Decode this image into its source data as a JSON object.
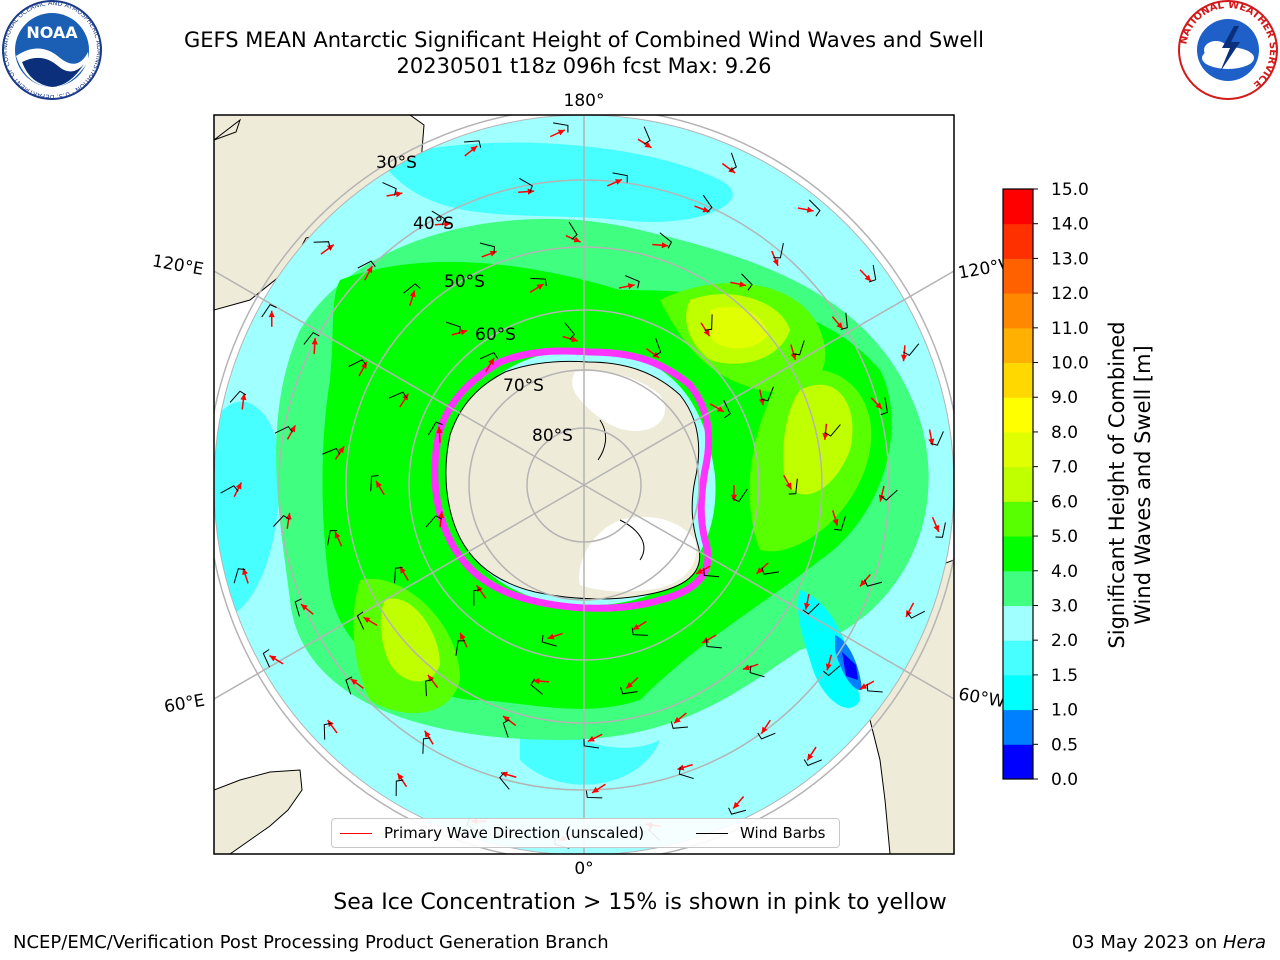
{
  "title": {
    "line1": "GEFS MEAN Antarctic Significant Height of Combined Wind Waves and Swell",
    "line2": "20230501 t18z 096h fcst   Max: 9.26"
  },
  "map": {
    "projection": "south-polar-stereographic",
    "meridian_labels": {
      "top": "180°",
      "bottom": "0°",
      "left_upper": "120°E",
      "left_lower": "60°E",
      "right_upper": "120°W",
      "right_lower": "60°W"
    },
    "latitude_labels": [
      "30°S",
      "40°S",
      "50°S",
      "60°S",
      "70°S",
      "80°S"
    ],
    "colors": {
      "land": "#efebd9",
      "ice_shelf": "#ffffff",
      "sea_ice_edge": "#ff33ff",
      "grid": "#b4b4b4",
      "wave_arrow": "#ff0000",
      "wind_barb": "#000000"
    }
  },
  "legend": {
    "wave_label": "Primary Wave Direction (unscaled)",
    "barb_label": "Wind Barbs",
    "wave_color": "#ff0000",
    "barb_color": "#000000"
  },
  "colorbar": {
    "label_line1": "Significant Height of Combined",
    "label_line2": "Wind Waves and Swell [m]",
    "ticks": [
      "0.0",
      "0.5",
      "1.0",
      "1.5",
      "2.0",
      "3.0",
      "4.0",
      "5.0",
      "6.0",
      "7.0",
      "8.0",
      "9.0",
      "10.0",
      "11.0",
      "12.0",
      "13.0",
      "14.0",
      "15.0"
    ],
    "colors": [
      "#0000ff",
      "#0080ff",
      "#00ffff",
      "#48ffff",
      "#a0ffff",
      "#40ff80",
      "#00ff00",
      "#58ff00",
      "#c0ff00",
      "#e0ff00",
      "#ffff00",
      "#ffd800",
      "#ffb000",
      "#ff8800",
      "#ff6000",
      "#ff3000",
      "#ff0000"
    ]
  },
  "caption": "Sea Ice Concentration > 15% is shown in pink to yellow",
  "footer": {
    "left": "NCEP/EMC/Verification Post Processing Product Generation Branch",
    "right_date": "03 May 2023 on ",
    "right_host": "Hera"
  },
  "logos": {
    "noaa_text": "NOAA",
    "noaa_ring": "NATIONAL OCEANIC AND ATMOSPHERIC ADMINISTRATION · U.S. DEPARTMENT OF COMMERCE",
    "nws_ring": "NATIONAL WEATHER SERVICE"
  }
}
